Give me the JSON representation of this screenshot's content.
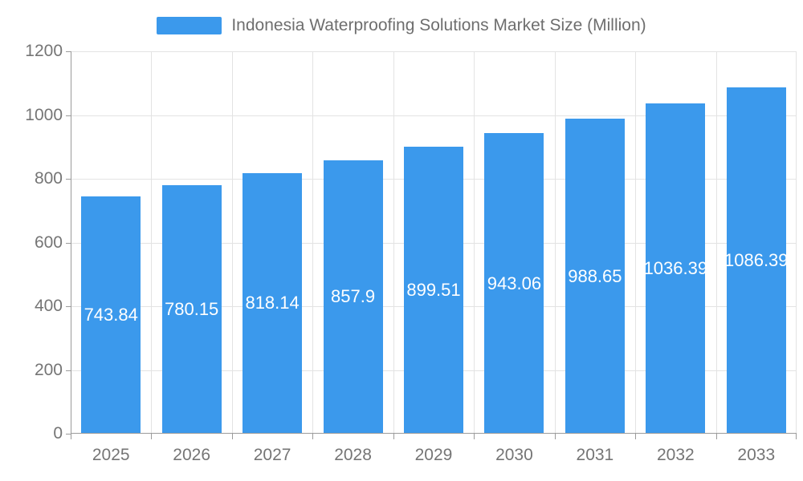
{
  "legend": {
    "label": "Indonesia Waterproofing Solutions Market Size (Million)"
  },
  "colors": {
    "bar": "#3b99ec",
    "axis_line": "#9b9b9b",
    "grid_line": "#e3e3e3",
    "axis_label": "#757575",
    "legend_text": "#6e6e6e",
    "bar_label": "#ffffff",
    "background": "#ffffff"
  },
  "chart_data": {
    "type": "bar",
    "title": "Indonesia Waterproofing Solutions Market Size (Million)",
    "categories": [
      "2025",
      "2026",
      "2027",
      "2028",
      "2029",
      "2030",
      "2031",
      "2032",
      "2033"
    ],
    "series": [
      {
        "name": "Indonesia Waterproofing Solutions Market Size (Million)",
        "values": [
          743.84,
          780.15,
          818.14,
          857.9,
          899.51,
          943.06,
          988.65,
          1036.39,
          1086.39
        ]
      }
    ],
    "xlabel": "",
    "ylabel": "",
    "ylim": [
      0,
      1200
    ],
    "y_ticks": [
      0,
      200,
      400,
      600,
      800,
      1000,
      1200
    ],
    "grid": true,
    "legend_position": "top-center",
    "value_labels": "inside-middle"
  }
}
